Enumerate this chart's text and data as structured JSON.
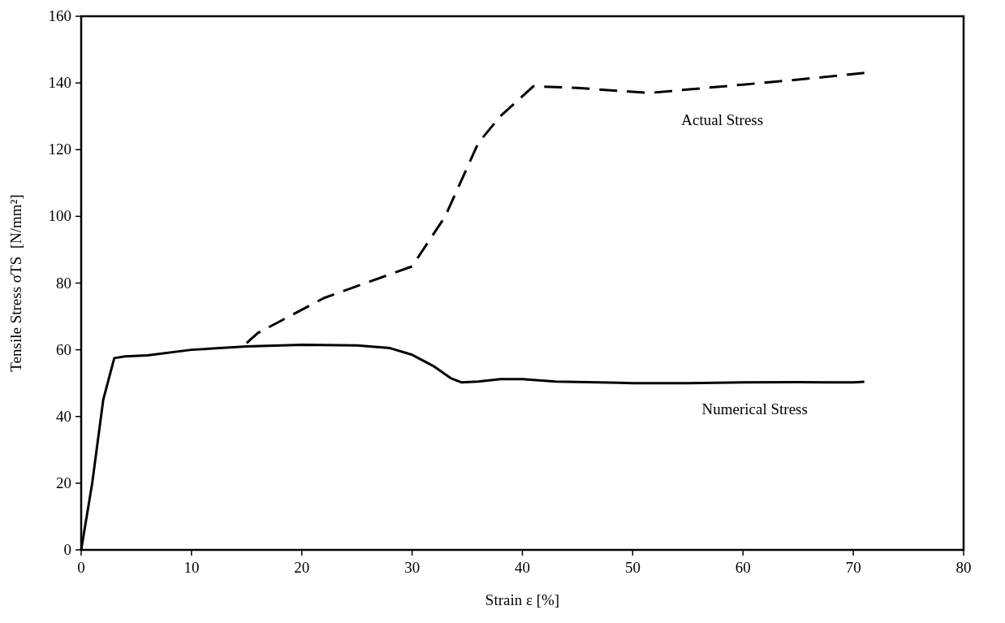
{
  "chart_data": {
    "type": "line",
    "xlabel": "Strain ε [%]",
    "ylabel": "Tensile Stress σTS  [N/mm²]",
    "xlim": [
      0,
      80
    ],
    "xticks": [
      0,
      10,
      20,
      30,
      40,
      50,
      60,
      70,
      80
    ],
    "ylim": [
      0,
      160
    ],
    "yticks": [
      0,
      20,
      40,
      60,
      80,
      100,
      120,
      140,
      160
    ],
    "grid": false,
    "marker": "none",
    "series": [
      {
        "name": "Actual Stress",
        "color": "#000000",
        "line_style": "dashed",
        "x": [
          15,
          16,
          20,
          22,
          30,
          33,
          36,
          38,
          41,
          45,
          51.5,
          60,
          65,
          71
        ],
        "values": [
          62,
          65,
          72,
          75.5,
          85,
          100,
          122,
          130,
          139,
          138.5,
          137,
          139.5,
          141,
          143
        ]
      },
      {
        "name": "Numerical Stress",
        "color": "#000000",
        "line_style": "solid",
        "x": [
          0,
          1,
          2,
          3,
          4,
          6,
          10,
          15,
          20,
          25,
          28,
          30,
          32,
          33.5,
          34.5,
          36,
          38,
          40,
          43,
          50,
          55,
          60,
          65,
          70,
          71
        ],
        "values": [
          0,
          20,
          45,
          57.5,
          58,
          58.3,
          60,
          61,
          61.5,
          61.3,
          60.5,
          58.5,
          55,
          51.5,
          50.2,
          50.5,
          51.2,
          51.2,
          50.5,
          50,
          50,
          50.2,
          50.3,
          50.2,
          50.4
        ]
      }
    ]
  }
}
